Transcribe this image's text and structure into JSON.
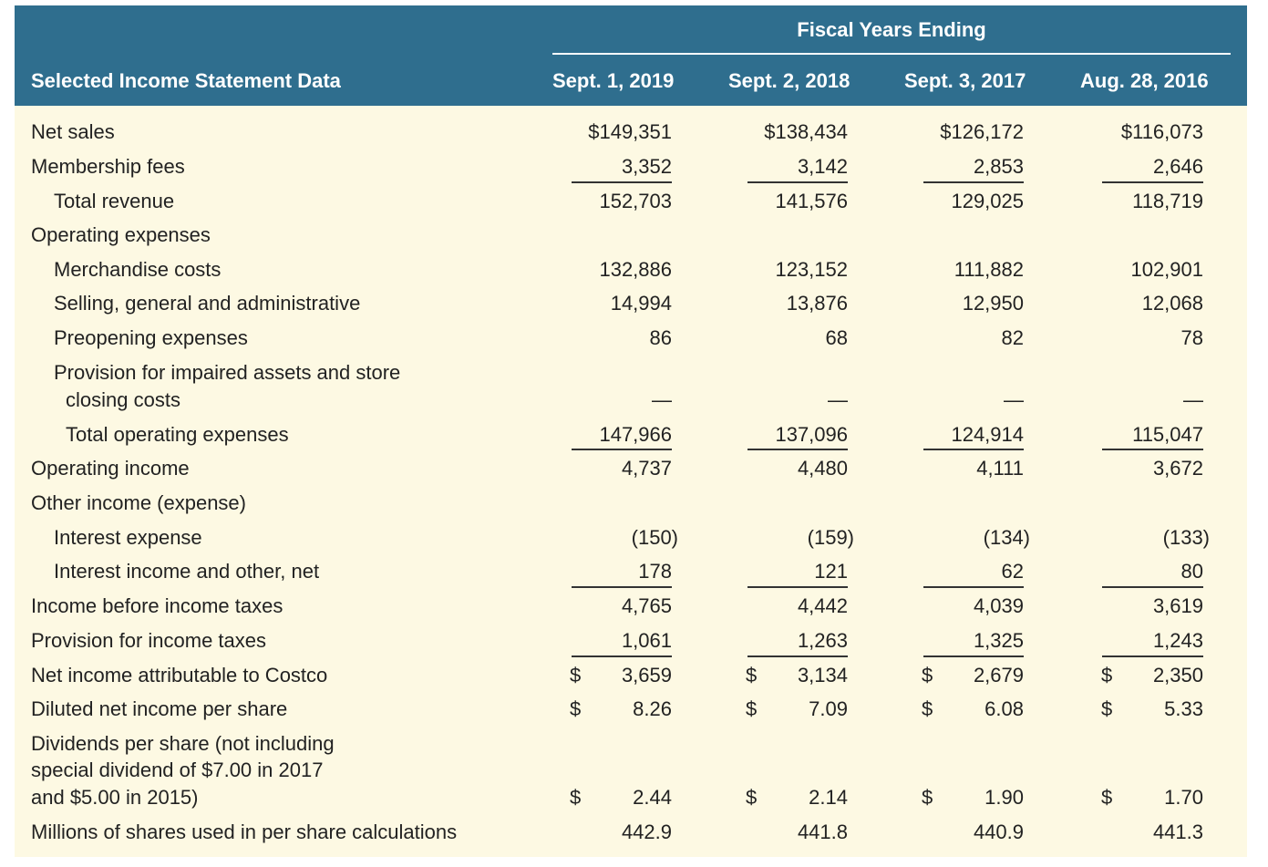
{
  "header": {
    "group_title": "Fiscal Years Ending",
    "label_header": "Selected Income Statement Data",
    "columns": [
      "Sept. 1, 2019",
      "Sept. 2, 2018",
      "Sept. 3, 2017",
      "Aug. 28, 2016"
    ]
  },
  "rows": [
    {
      "label": "Net sales",
      "values": [
        "$149,351",
        "$138,434",
        "$126,172",
        "$116,073"
      ]
    },
    {
      "label": "Membership fees",
      "values": [
        "3,352",
        "3,142",
        "2,853",
        "2,646"
      ]
    },
    {
      "label": "Total revenue",
      "values": [
        "152,703",
        "141,576",
        "129,025",
        "118,719"
      ]
    },
    {
      "label": "Operating expenses",
      "values": [
        "",
        "",
        "",
        ""
      ]
    },
    {
      "label": "Merchandise costs",
      "values": [
        "132,886",
        "123,152",
        "111,882",
        "102,901"
      ]
    },
    {
      "label": "Selling, general and administrative",
      "values": [
        "14,994",
        "13,876",
        "12,950",
        "12,068"
      ]
    },
    {
      "label": "Preopening expenses",
      "values": [
        "86",
        "68",
        "82",
        "78"
      ]
    },
    {
      "label": "Provision for impaired assets and store",
      "label_line2": "closing costs",
      "values": [
        "—",
        "—",
        "—",
        "—"
      ]
    },
    {
      "label": "Total operating expenses",
      "values": [
        "147,966",
        "137,096",
        "124,914",
        "115,047"
      ]
    },
    {
      "label": "Operating income",
      "values": [
        "4,737",
        "4,480",
        "4,111",
        "3,672"
      ]
    },
    {
      "label": "Other income (expense)",
      "values": [
        "",
        "",
        "",
        ""
      ]
    },
    {
      "label": "Interest expense",
      "values": [
        "(150)",
        "(159)",
        "(134)",
        "(133)"
      ]
    },
    {
      "label": "Interest income and other, net",
      "values": [
        "178",
        "121",
        "62",
        "80"
      ]
    },
    {
      "label": "Income before income taxes",
      "values": [
        "4,765",
        "4,442",
        "4,039",
        "3,619"
      ]
    },
    {
      "label": "Provision for income taxes",
      "values": [
        "1,061",
        "1,263",
        "1,325",
        "1,243"
      ]
    },
    {
      "label": "Net income attributable to Costco",
      "values": [
        "3,659",
        "3,134",
        "2,679",
        "2,350"
      ]
    },
    {
      "label": "Diluted net income per share",
      "values": [
        "8.26",
        "7.09",
        "6.08",
        "5.33"
      ]
    },
    {
      "label": "Dividends per share (not including",
      "label_line2": "special dividend of $7.00 in 2017",
      "label_line3": "and $5.00 in 2015)",
      "values": [
        "2.44",
        "2.14",
        "1.90",
        "1.70"
      ]
    },
    {
      "label": "Millions of shares used in per share calculations",
      "values": [
        "442.9",
        "441.8",
        "440.9",
        "441.3"
      ]
    }
  ],
  "currency_symbol": "$",
  "colors": {
    "header_bg": "#2f6e8e",
    "body_bg": "#fdf9e3"
  }
}
